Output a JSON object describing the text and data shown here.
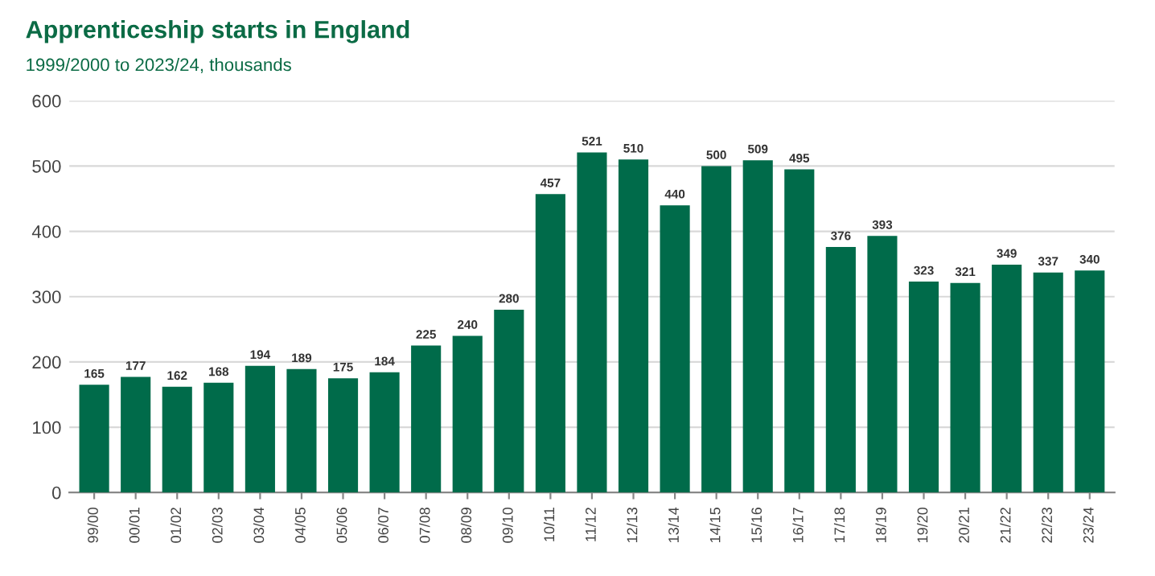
{
  "chart_data": {
    "type": "bar",
    "title": "Apprenticeship starts in England",
    "subtitle": "1999/2000 to 2023/24, thousands",
    "categories": [
      "99/00",
      "00/01",
      "01/02",
      "02/03",
      "03/04",
      "04/05",
      "05/06",
      "06/07",
      "07/08",
      "08/09",
      "09/10",
      "10/11",
      "11/12",
      "12/13",
      "13/14",
      "14/15",
      "15/16",
      "16/17",
      "17/18",
      "18/19",
      "19/20",
      "20/21",
      "21/22",
      "22/23",
      "23/24"
    ],
    "values": [
      165,
      177,
      162,
      168,
      194,
      189,
      175,
      184,
      225,
      240,
      280,
      457,
      521,
      510,
      440,
      500,
      509,
      495,
      376,
      393,
      323,
      321,
      349,
      337,
      340
    ],
    "color": "#006b4a",
    "ylim": [
      0,
      600
    ],
    "yticks": [
      0,
      100,
      200,
      300,
      400,
      500,
      600
    ],
    "grid": "y",
    "data_labels": true
  }
}
